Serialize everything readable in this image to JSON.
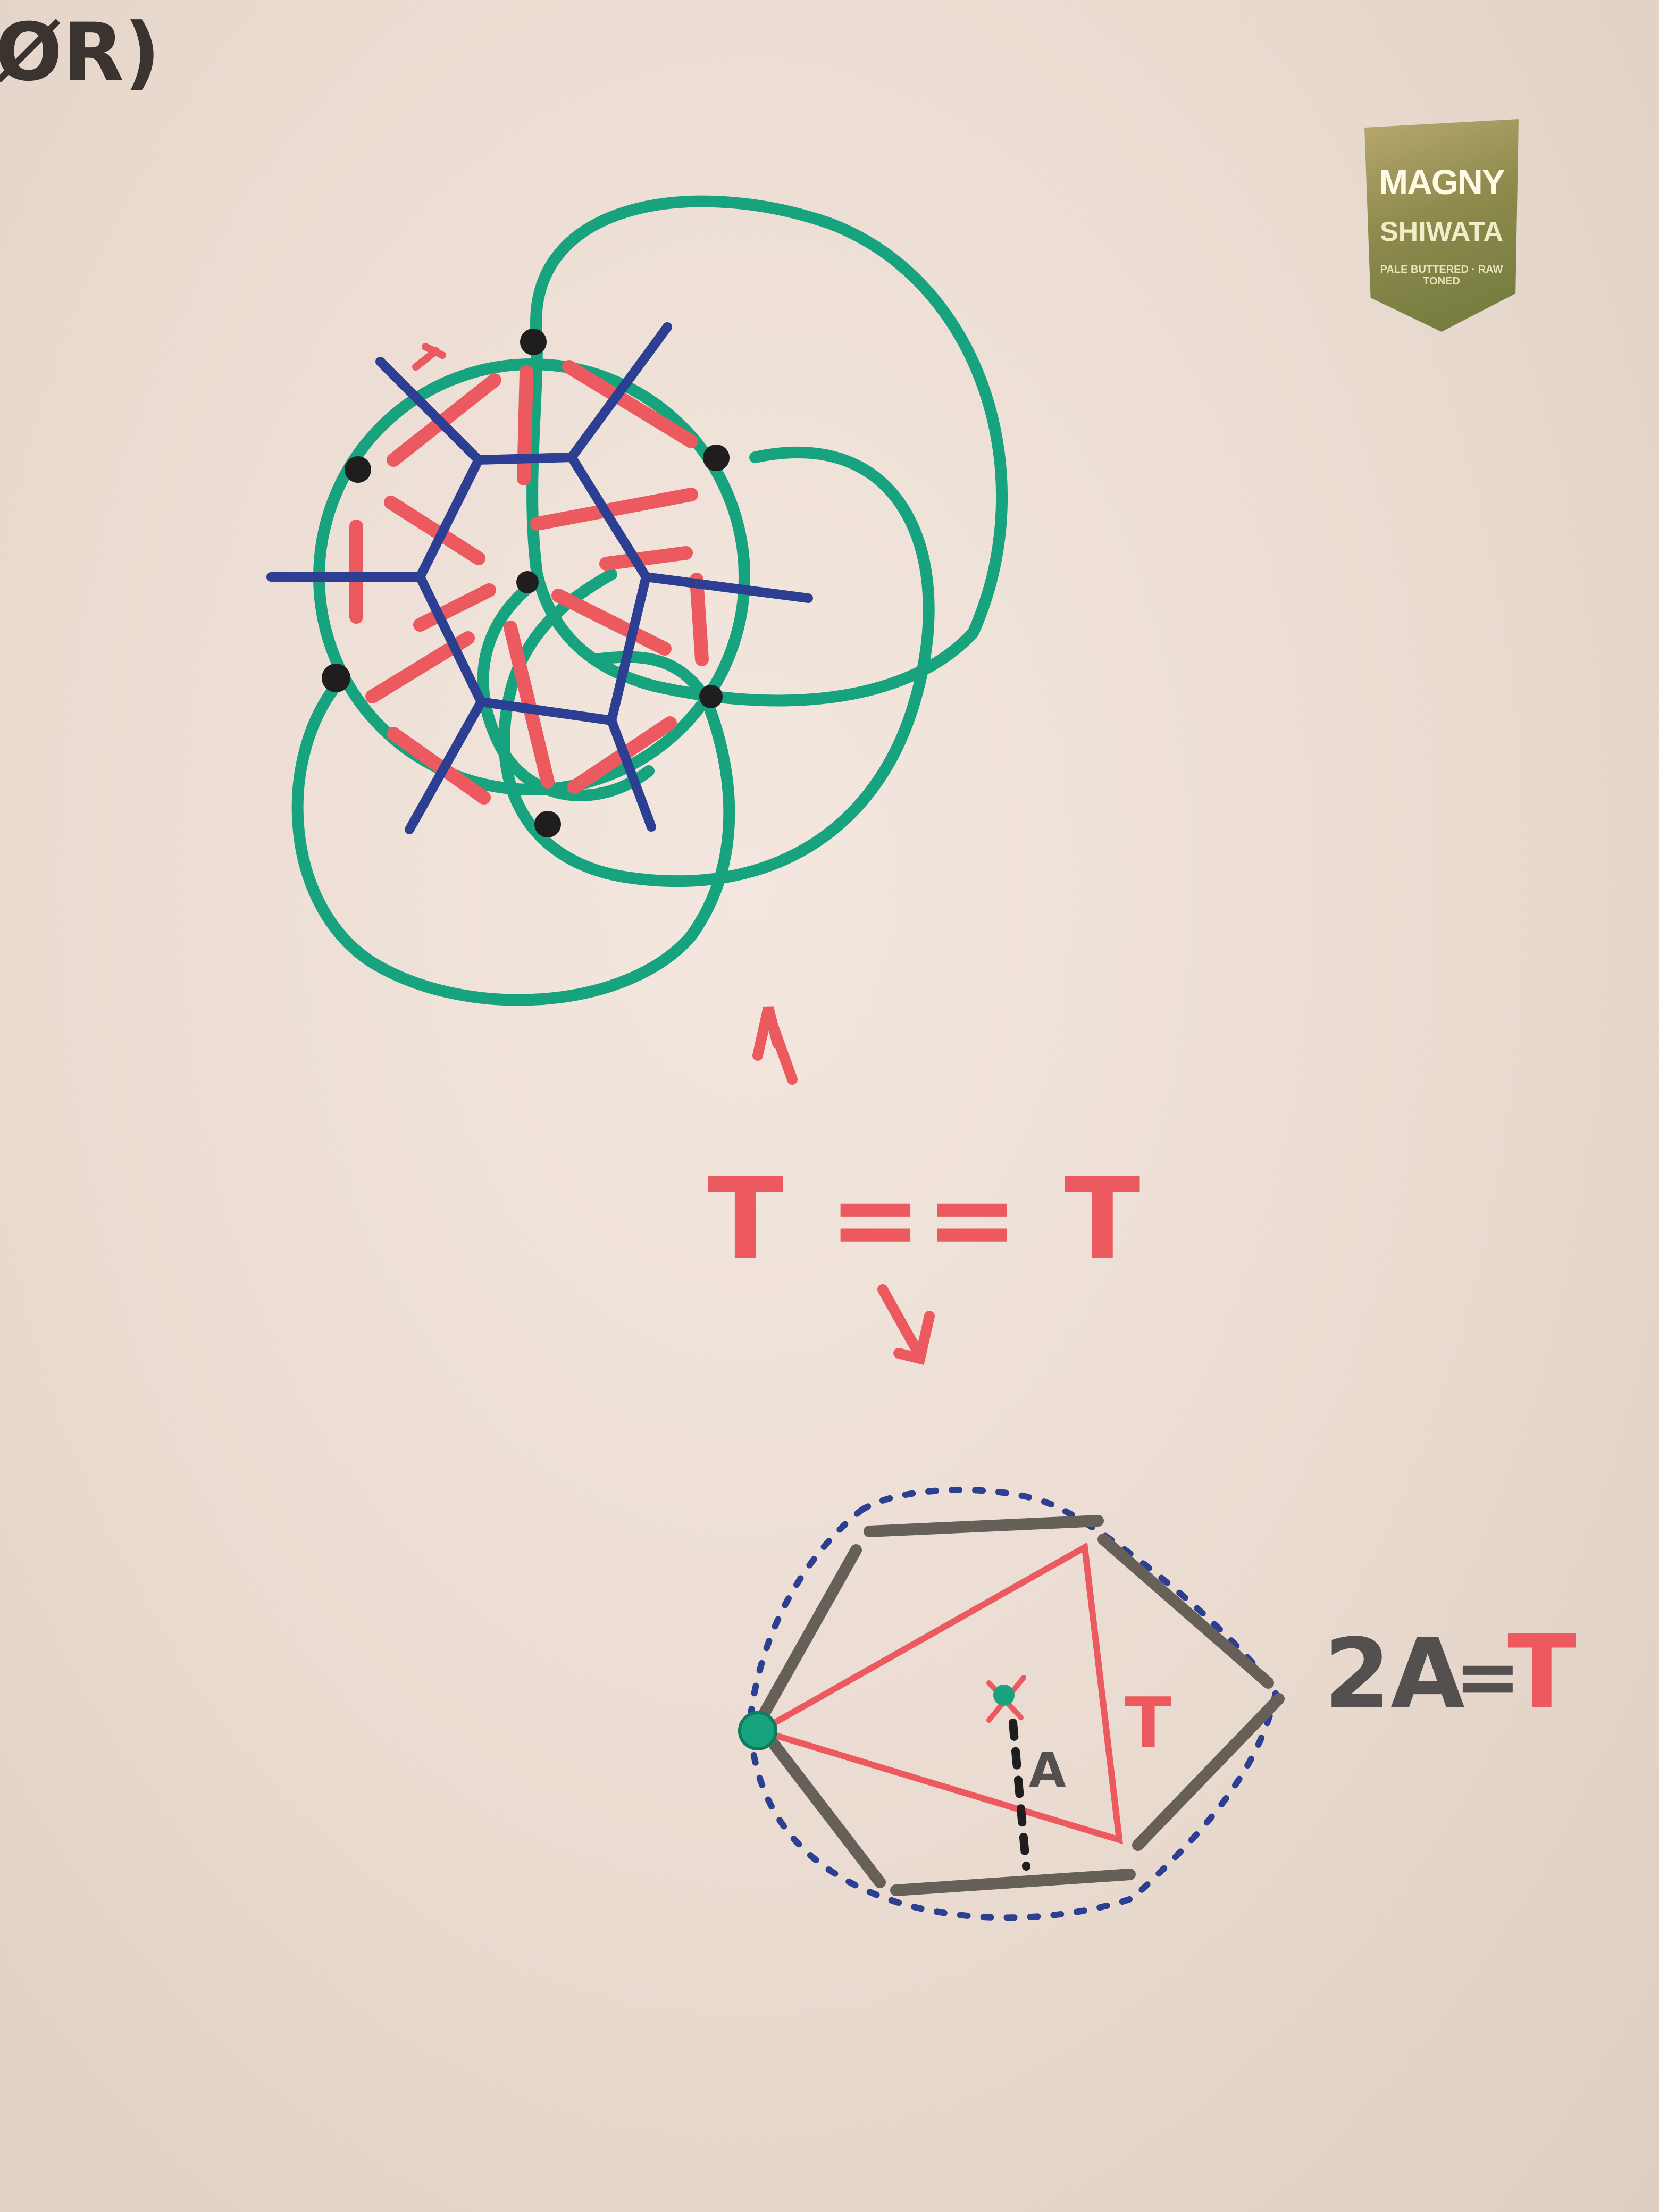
{
  "whiteboard": {
    "corner_label": "ØR)",
    "tiling_label": "T",
    "relation": "T == T",
    "hexagon_triangle_label": "T",
    "hexagon_area_label": "A",
    "equation_lhs": "2A",
    "equation_eq": "=",
    "equation_rhs": "T"
  },
  "sticker": {
    "brand": "MAGNY",
    "name": "SHIWATA",
    "small_print": "PALE BUTTERED · RAW TONED"
  },
  "colors": {
    "green": "#18a37f",
    "blue": "#2c3f93",
    "red": "#ec5a5f",
    "black": "#1f1d1d",
    "gray": "#666058"
  }
}
